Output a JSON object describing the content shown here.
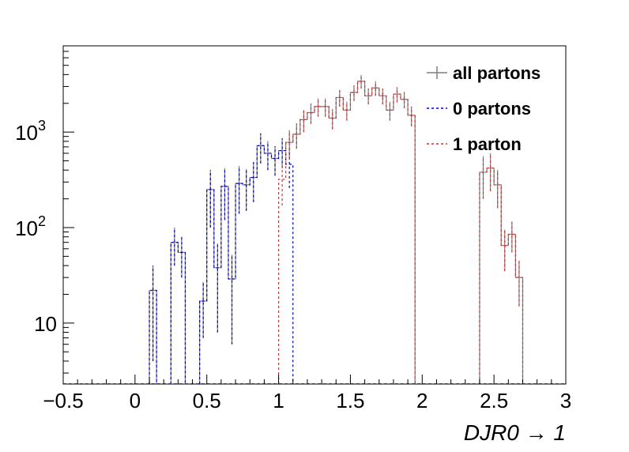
{
  "chart_data": {
    "type": "histogram",
    "xlabel": "DJR0 → 1",
    "xlim": [
      -0.5,
      3.0
    ],
    "ylim": [
      2.3,
      8000
    ],
    "yscale": "log",
    "grid": false,
    "legend_position": "top-right",
    "x_ticks": [
      "−0.5",
      "0",
      "0.5",
      "1",
      "1.5",
      "2",
      "2.5",
      "3"
    ],
    "x_tick_values": [
      -0.5,
      0,
      0.5,
      1,
      1.5,
      2,
      2.5,
      3
    ],
    "y_ticks": [
      {
        "value": 10,
        "base": "10",
        "exp": ""
      },
      {
        "value": 100,
        "base": "10",
        "exp": "2"
      },
      {
        "value": 1000,
        "base": "10",
        "exp": "3"
      }
    ],
    "bin_width": 0.05,
    "series": [
      {
        "name": "all partons",
        "color": "#7f7f7f",
        "line": "solid",
        "bins": [
          {
            "x": 0.1,
            "y": 22,
            "err": 18
          },
          {
            "x": 0.25,
            "y": 70,
            "err": 30
          },
          {
            "x": 0.3,
            "y": 55,
            "err": 25
          },
          {
            "x": 0.45,
            "y": 17,
            "err": 10
          },
          {
            "x": 0.5,
            "y": 250,
            "err": 150
          },
          {
            "x": 0.55,
            "y": 38,
            "err": 30
          },
          {
            "x": 0.6,
            "y": 270,
            "err": 150
          },
          {
            "x": 0.65,
            "y": 29,
            "err": 23
          },
          {
            "x": 0.7,
            "y": 290,
            "err": 150
          },
          {
            "x": 0.75,
            "y": 280,
            "err": 130
          },
          {
            "x": 0.8,
            "y": 335,
            "err": 150
          },
          {
            "x": 0.85,
            "y": 720,
            "err": 250
          },
          {
            "x": 0.9,
            "y": 600,
            "err": 200
          },
          {
            "x": 0.95,
            "y": 530,
            "err": 180
          },
          {
            "x": 1.0,
            "y": 640,
            "err": 220
          },
          {
            "x": 1.05,
            "y": 780,
            "err": 260
          },
          {
            "x": 1.1,
            "y": 950,
            "err": 280
          },
          {
            "x": 1.15,
            "y": 1350,
            "err": 350
          },
          {
            "x": 1.2,
            "y": 1600,
            "err": 380
          },
          {
            "x": 1.25,
            "y": 1850,
            "err": 400
          },
          {
            "x": 1.3,
            "y": 1850,
            "err": 400
          },
          {
            "x": 1.35,
            "y": 1400,
            "err": 330
          },
          {
            "x": 1.4,
            "y": 2300,
            "err": 450
          },
          {
            "x": 1.45,
            "y": 1700,
            "err": 380
          },
          {
            "x": 1.5,
            "y": 2600,
            "err": 480
          },
          {
            "x": 1.55,
            "y": 3400,
            "err": 550
          },
          {
            "x": 1.6,
            "y": 2400,
            "err": 450
          },
          {
            "x": 1.65,
            "y": 2900,
            "err": 500
          },
          {
            "x": 1.7,
            "y": 2400,
            "err": 450
          },
          {
            "x": 1.75,
            "y": 1700,
            "err": 380
          },
          {
            "x": 1.8,
            "y": 2500,
            "err": 450
          },
          {
            "x": 1.85,
            "y": 2200,
            "err": 420
          },
          {
            "x": 1.9,
            "y": 1500,
            "err": 350
          },
          {
            "x": 2.4,
            "y": 380,
            "err": 180
          },
          {
            "x": 2.45,
            "y": 420,
            "err": 180
          },
          {
            "x": 2.5,
            "y": 280,
            "err": 120
          },
          {
            "x": 2.55,
            "y": 65,
            "err": 30
          },
          {
            "x": 2.6,
            "y": 85,
            "err": 30
          },
          {
            "x": 2.65,
            "y": 30,
            "err": 15
          }
        ]
      },
      {
        "name": "0 partons",
        "color": "#0000cc",
        "line": "dashed",
        "bins": [
          {
            "x": 0.1,
            "y": 22,
            "err": 18
          },
          {
            "x": 0.25,
            "y": 70,
            "err": 30
          },
          {
            "x": 0.3,
            "y": 55,
            "err": 25
          },
          {
            "x": 0.45,
            "y": 17,
            "err": 10
          },
          {
            "x": 0.5,
            "y": 250,
            "err": 150
          },
          {
            "x": 0.55,
            "y": 38,
            "err": 30
          },
          {
            "x": 0.6,
            "y": 270,
            "err": 150
          },
          {
            "x": 0.65,
            "y": 29,
            "err": 23
          },
          {
            "x": 0.7,
            "y": 290,
            "err": 150
          },
          {
            "x": 0.75,
            "y": 280,
            "err": 130
          },
          {
            "x": 0.8,
            "y": 335,
            "err": 150
          },
          {
            "x": 0.85,
            "y": 720,
            "err": 250
          },
          {
            "x": 0.9,
            "y": 600,
            "err": 200
          },
          {
            "x": 0.95,
            "y": 530,
            "err": 180
          },
          {
            "x": 1.0,
            "y": 640,
            "err": 220
          },
          {
            "x": 1.05,
            "y": 460,
            "err": 200
          }
        ]
      },
      {
        "name": "1 parton",
        "color": "#cc3333",
        "line": "dashed",
        "bins": [
          {
            "x": 1.0,
            "y": 320,
            "err": 150
          },
          {
            "x": 1.05,
            "y": 780,
            "err": 260
          },
          {
            "x": 1.1,
            "y": 950,
            "err": 280
          },
          {
            "x": 1.15,
            "y": 1350,
            "err": 350
          },
          {
            "x": 1.2,
            "y": 1600,
            "err": 380
          },
          {
            "x": 1.25,
            "y": 1850,
            "err": 400
          },
          {
            "x": 1.3,
            "y": 1850,
            "err": 400
          },
          {
            "x": 1.35,
            "y": 1400,
            "err": 330
          },
          {
            "x": 1.4,
            "y": 2300,
            "err": 450
          },
          {
            "x": 1.45,
            "y": 1700,
            "err": 380
          },
          {
            "x": 1.5,
            "y": 2600,
            "err": 480
          },
          {
            "x": 1.55,
            "y": 3400,
            "err": 550
          },
          {
            "x": 1.6,
            "y": 2400,
            "err": 450
          },
          {
            "x": 1.65,
            "y": 2900,
            "err": 500
          },
          {
            "x": 1.7,
            "y": 2400,
            "err": 450
          },
          {
            "x": 1.75,
            "y": 1700,
            "err": 380
          },
          {
            "x": 1.8,
            "y": 2500,
            "err": 450
          },
          {
            "x": 1.85,
            "y": 2200,
            "err": 420
          },
          {
            "x": 1.9,
            "y": 1500,
            "err": 350
          },
          {
            "x": 2.4,
            "y": 380,
            "err": 180
          },
          {
            "x": 2.45,
            "y": 420,
            "err": 180
          },
          {
            "x": 2.5,
            "y": 280,
            "err": 120
          },
          {
            "x": 2.55,
            "y": 65,
            "err": 30
          },
          {
            "x": 2.6,
            "y": 85,
            "err": 30
          },
          {
            "x": 2.65,
            "y": 30,
            "err": 15
          }
        ]
      }
    ]
  }
}
